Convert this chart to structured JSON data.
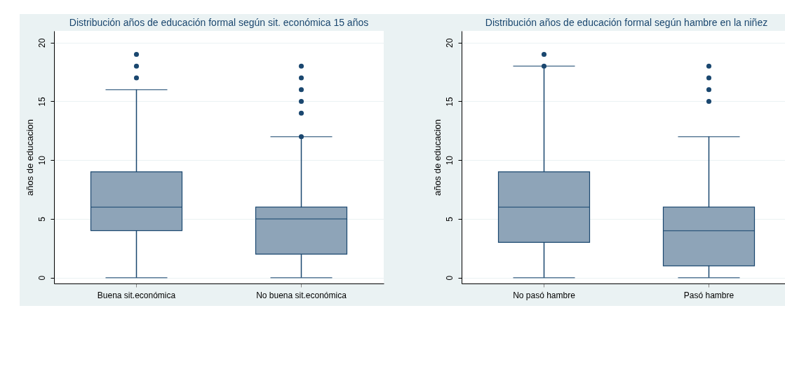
{
  "chart_data": [
    {
      "type": "box",
      "title": "Distribución años de educación formal según sit. económica 15 años",
      "ylabel": "años de educacion",
      "categories": [
        "Buena sit.económica",
        "No buena sit.económica"
      ],
      "ylim": [
        -0.5,
        21
      ],
      "yticks": [
        0,
        5,
        10,
        15,
        20
      ],
      "grid": "y",
      "series": [
        {
          "color": "#8ea4b8",
          "boxes": [
            {
              "low": 0,
              "q1": 4,
              "median": 6,
              "q3": 9,
              "high": 16,
              "outliers": [
                17,
                18,
                19
              ]
            },
            {
              "low": 0,
              "q1": 2,
              "median": 5,
              "q3": 6,
              "high": 12,
              "outliers": [
                12,
                14,
                15,
                16,
                17,
                18
              ]
            }
          ]
        }
      ]
    },
    {
      "type": "box",
      "title": "Distribución años de educación formal según hambre en la niñez",
      "ylabel": "años de educacion",
      "categories": [
        "No pasó hambre",
        "Pasó hambre"
      ],
      "ylim": [
        -0.5,
        21
      ],
      "yticks": [
        0,
        5,
        10,
        15,
        20
      ],
      "grid": "y",
      "series": [
        {
          "color": "#8ea4b8",
          "boxes": [
            {
              "low": 0,
              "q1": 3,
              "median": 6,
              "q3": 9,
              "high": 18,
              "outliers": [
                18,
                19
              ]
            },
            {
              "low": 0,
              "q1": 1,
              "median": 4,
              "q3": 6,
              "high": 12,
              "outliers": [
                15,
                16,
                17,
                18
              ]
            }
          ]
        }
      ]
    }
  ]
}
